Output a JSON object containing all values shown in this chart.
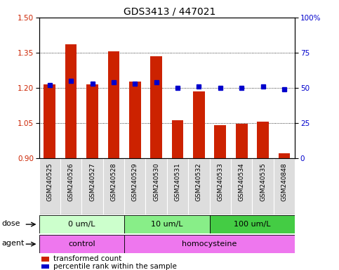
{
  "title": "GDS3413 / 447021",
  "samples": [
    "GSM240525",
    "GSM240526",
    "GSM240527",
    "GSM240528",
    "GSM240529",
    "GSM240530",
    "GSM240531",
    "GSM240532",
    "GSM240533",
    "GSM240534",
    "GSM240535",
    "GSM240848"
  ],
  "bar_values": [
    1.215,
    1.385,
    1.215,
    1.355,
    1.225,
    1.335,
    1.06,
    1.185,
    1.04,
    1.045,
    1.055,
    0.92
  ],
  "dot_values": [
    52,
    55,
    53,
    54,
    53,
    54,
    50,
    51,
    50,
    50,
    51,
    49
  ],
  "bar_color": "#cc2200",
  "dot_color": "#0000cc",
  "bar_bottom": 0.9,
  "ylim_left": [
    0.9,
    1.5
  ],
  "ylim_right": [
    0,
    100
  ],
  "yticks_left": [
    0.9,
    1.05,
    1.2,
    1.35,
    1.5
  ],
  "yticks_right": [
    0,
    25,
    50,
    75,
    100
  ],
  "ytick_labels_right": [
    "0",
    "25",
    "50",
    "75",
    "100%"
  ],
  "dose_groups": [
    {
      "label": "0 um/L",
      "start": 0,
      "end": 4,
      "color": "#ccffcc"
    },
    {
      "label": "10 um/L",
      "start": 4,
      "end": 8,
      "color": "#88ee88"
    },
    {
      "label": "100 um/L",
      "start": 8,
      "end": 12,
      "color": "#44cc44"
    }
  ],
  "agent_groups": [
    {
      "label": "control",
      "start": 0,
      "end": 4,
      "color": "#ee77ee"
    },
    {
      "label": "homocysteine",
      "start": 4,
      "end": 12,
      "color": "#ee77ee"
    }
  ],
  "dose_label": "dose",
  "agent_label": "agent",
  "legend_bar": "transformed count",
  "legend_dot": "percentile rank within the sample",
  "tick_fontsize": 7.5,
  "sample_fontsize": 6.5,
  "title_fontsize": 10
}
